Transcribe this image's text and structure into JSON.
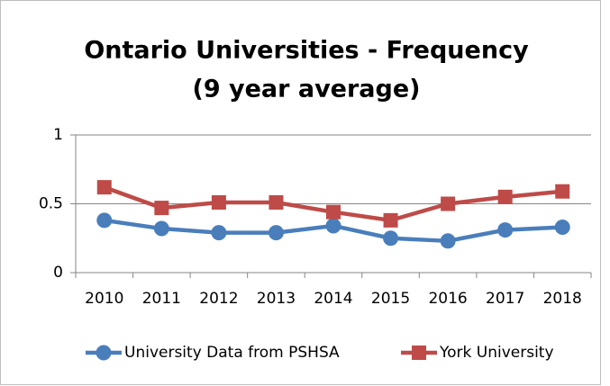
{
  "chart_data": {
    "type": "line",
    "title": [
      "Ontario Universities - Frequency",
      "(9 year average)"
    ],
    "categories": [
      "2010",
      "2011",
      "2012",
      "2013",
      "2014",
      "2015",
      "2016",
      "2017",
      "2018"
    ],
    "series": [
      {
        "name": "University Data from PSHSA",
        "color": "#4a7ebb",
        "marker": "circle",
        "values": [
          0.38,
          0.32,
          0.29,
          0.29,
          0.34,
          0.25,
          0.23,
          0.31,
          0.33
        ]
      },
      {
        "name": "York University",
        "color": "#be4b48",
        "marker": "square",
        "values": [
          0.62,
          0.47,
          0.51,
          0.51,
          0.44,
          0.38,
          0.5,
          0.55,
          0.59
        ]
      }
    ],
    "ylim": [
      0,
      1
    ],
    "yticks": [
      0,
      0.5,
      1
    ],
    "grid": true,
    "legend": "bottom"
  }
}
